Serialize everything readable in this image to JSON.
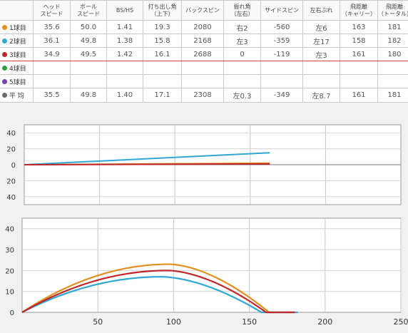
{
  "table": {
    "headers": [
      {
        "key": "label",
        "text": ""
      },
      {
        "key": "head_speed",
        "text": "ヘッド\nスピード"
      },
      {
        "key": "ball_speed",
        "text": "ボール\nスピード"
      },
      {
        "key": "bs_hs",
        "text": "BS/HS"
      },
      {
        "key": "launch_angle",
        "text": "打ち出し角\n（上下）"
      },
      {
        "key": "backspin",
        "text": "バックスピン"
      },
      {
        "key": "side_angle",
        "text": "振れ角\n（左右）"
      },
      {
        "key": "sidespin",
        "text": "サイドスピン"
      },
      {
        "key": "deviation",
        "text": "左右ぶれ"
      },
      {
        "key": "carry",
        "text": "飛距離\n（キャリー）"
      },
      {
        "key": "total",
        "text": "飛距離\n（トータル）"
      }
    ],
    "rows": [
      {
        "label": "1球目",
        "color": "#e0901c",
        "cells": [
          "35.6",
          "50.0",
          "1.41",
          "19.3",
          "2080",
          "右2",
          "-560",
          "左6",
          "163",
          "181"
        ]
      },
      {
        "label": "2球目",
        "color": "#2ea8d6",
        "cells": [
          "36.1",
          "49.8",
          "1.38",
          "15.8",
          "2168",
          "左3",
          "-359",
          "左17",
          "158",
          "182"
        ]
      },
      {
        "label": "3球目",
        "color": "#c0272d",
        "cells": [
          "34.9",
          "49.5",
          "1.42",
          "16.1",
          "2688",
          "0",
          "-119",
          "左3",
          "161",
          "180"
        ],
        "selected": true
      },
      {
        "label": "4球目",
        "color": "#2e9e3a",
        "cells": [
          "",
          "",
          "",
          "",
          "",
          "",
          "",
          "",
          "",
          ""
        ]
      },
      {
        "label": "5球目",
        "color": "#7a3fb0",
        "cells": [
          "",
          "",
          "",
          "",
          "",
          "",
          "",
          "",
          "",
          ""
        ]
      },
      {
        "label": "平 均",
        "color": "#6b6b6b",
        "cells": [
          "35.5",
          "49.8",
          "1.40",
          "17.1",
          "2308",
          "左0.3",
          "-349",
          "左8.7",
          "161",
          "181"
        ],
        "avg": true
      }
    ]
  },
  "top_view": {
    "y_tick_labels": [
      "40",
      "20",
      "0",
      "20",
      "40"
    ],
    "x_range": [
      0,
      250
    ],
    "y_range": [
      -50,
      50
    ],
    "series": [
      {
        "color": "#e0901c",
        "points": [
          [
            0,
            0
          ],
          [
            163,
            2
          ]
        ]
      },
      {
        "color": "#2ea8d6",
        "points": [
          [
            0,
            0
          ],
          [
            163,
            15
          ]
        ]
      },
      {
        "color": "#c0272d",
        "points": [
          [
            0,
            0
          ],
          [
            163,
            1
          ]
        ]
      }
    ]
  },
  "side_view": {
    "y_tick_labels": [
      "40",
      "30",
      "20",
      "10",
      "0"
    ],
    "x_tick_labels": [
      "50",
      "100",
      "150",
      "200",
      "250"
    ],
    "x_range": [
      0,
      250
    ],
    "y_range": [
      0,
      45
    ],
    "series": [
      {
        "color": "#e0901c",
        "carry": 163,
        "total": 181,
        "apex_x": 97,
        "apex_y": 23
      },
      {
        "color": "#2ea8d6",
        "carry": 158,
        "total": 182,
        "apex_x": 92,
        "apex_y": 17
      },
      {
        "color": "#c0272d",
        "carry": 161,
        "total": 180,
        "apex_x": 96,
        "apex_y": 20
      }
    ]
  }
}
